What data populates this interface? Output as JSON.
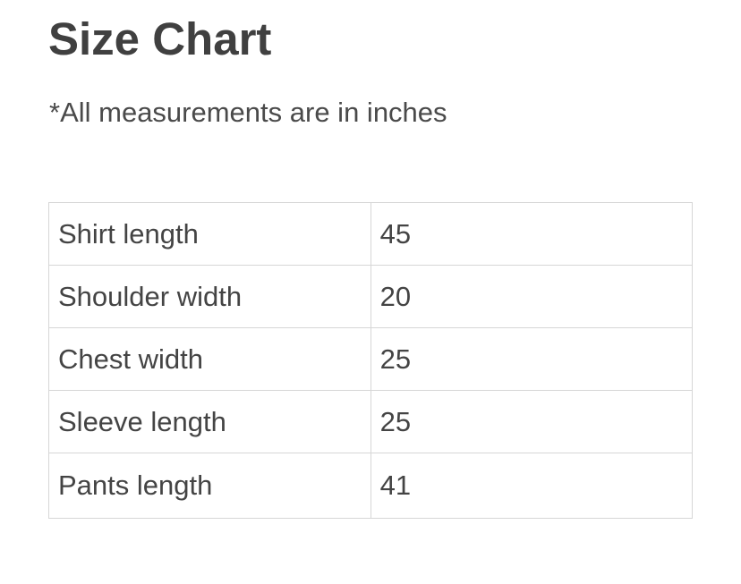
{
  "title": "Size Chart",
  "note": "*All measurements are in inches",
  "rows": [
    {
      "label": "Shirt length",
      "value": "45"
    },
    {
      "label": "Shoulder width",
      "value": "20"
    },
    {
      "label": "Chest width",
      "value": "25"
    },
    {
      "label": "Sleeve length",
      "value": "25"
    },
    {
      "label": "Pants length",
      "value": "41"
    }
  ]
}
